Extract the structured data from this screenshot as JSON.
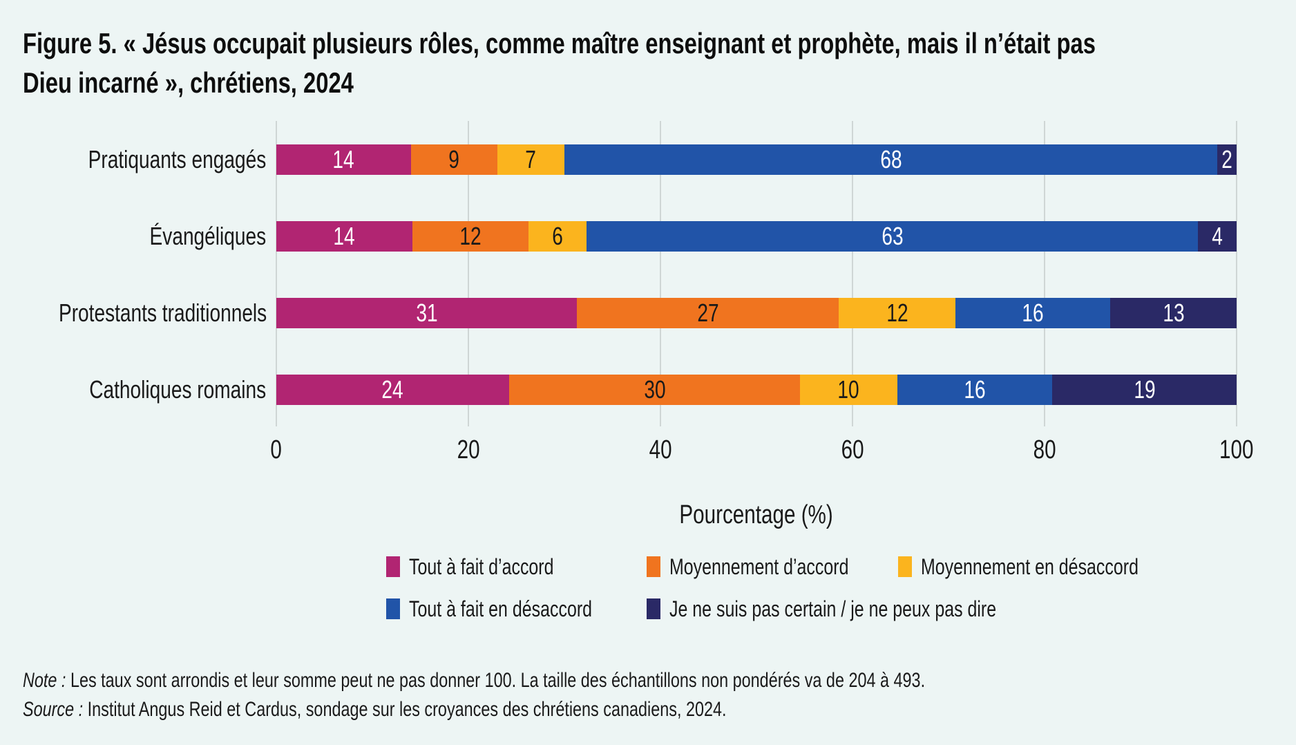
{
  "title_lines": [
    "Figure 5. « Jésus occupait plusieurs rôles, comme maître enseignant et prophète, mais il n’était pas",
    "Dieu incarné », chrétiens, 2024"
  ],
  "chart_data": {
    "type": "bar",
    "orientation": "horizontal_stacked",
    "title": "Figure 5. « Jésus occupait plusieurs rôles, comme maître enseignant et prophète, mais il n’était pas Dieu incarné », chrétiens, 2024",
    "categories": [
      "Pratiquants engagés",
      "Évangéliques",
      "Protestants traditionnels",
      "Catholiques romains"
    ],
    "series": [
      {
        "name": "Tout à fait d’accord",
        "color": "#B12572",
        "label_color": "#FFFFFF",
        "values": [
          14,
          14,
          31,
          24
        ]
      },
      {
        "name": "Moyennement d’accord",
        "color": "#F0741F",
        "label_color": "#1A1A1A",
        "values": [
          9,
          12,
          27,
          30
        ]
      },
      {
        "name": "Moyennement en désaccord",
        "color": "#FBB41E",
        "label_color": "#1A1A1A",
        "values": [
          7,
          6,
          12,
          10
        ]
      },
      {
        "name": "Tout à fait en désaccord",
        "color": "#2154A8",
        "label_color": "#FFFFFF",
        "values": [
          68,
          63,
          16,
          16
        ]
      },
      {
        "name": "Je ne suis pas certain / je ne peux pas dire",
        "color": "#2A2966",
        "label_color": "#FFFFFF",
        "values": [
          2,
          4,
          13,
          19
        ]
      }
    ],
    "xlabel": "Pourcentage (%)",
    "xticks": [
      "0",
      "20",
      "40",
      "60",
      "80",
      "100"
    ],
    "xlim": [
      0,
      100
    ],
    "grid": true,
    "legend_position": "bottom"
  },
  "notes": [
    {
      "prefix": "Note :",
      "text": " Les taux sont arrondis et leur somme peut ne pas donner 100. La taille des échantillons non pondérés va de 204 à 493."
    },
    {
      "prefix": "Source :",
      "text": " Institut Angus Reid et Cardus, sondage sur les croyances des chrétiens canadiens, 2024."
    }
  ],
  "colors": {
    "background": "#EDF5F4",
    "gridline": "#CFD6D5",
    "text": "#1A1A1A"
  }
}
